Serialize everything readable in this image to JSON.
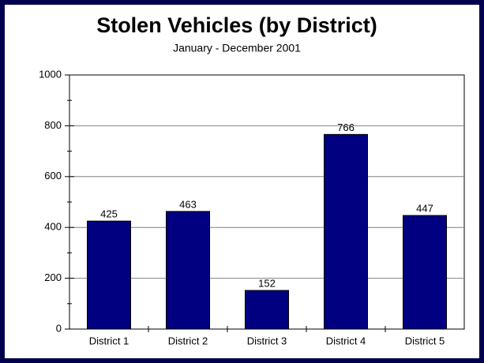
{
  "chart_data": {
    "type": "bar",
    "title": "Stolen Vehicles (by District)",
    "subtitle": "January - December 2001",
    "categories": [
      "District 1",
      "District 2",
      "District 3",
      "District 4",
      "District 5"
    ],
    "values": [
      425,
      463,
      152,
      766,
      447
    ],
    "color": "#000080",
    "ylim": [
      0,
      1000
    ],
    "yticks": [
      0,
      200,
      400,
      600,
      800,
      1000
    ],
    "yticks_minor": [
      100,
      300,
      500,
      700,
      900
    ],
    "grid": true
  }
}
